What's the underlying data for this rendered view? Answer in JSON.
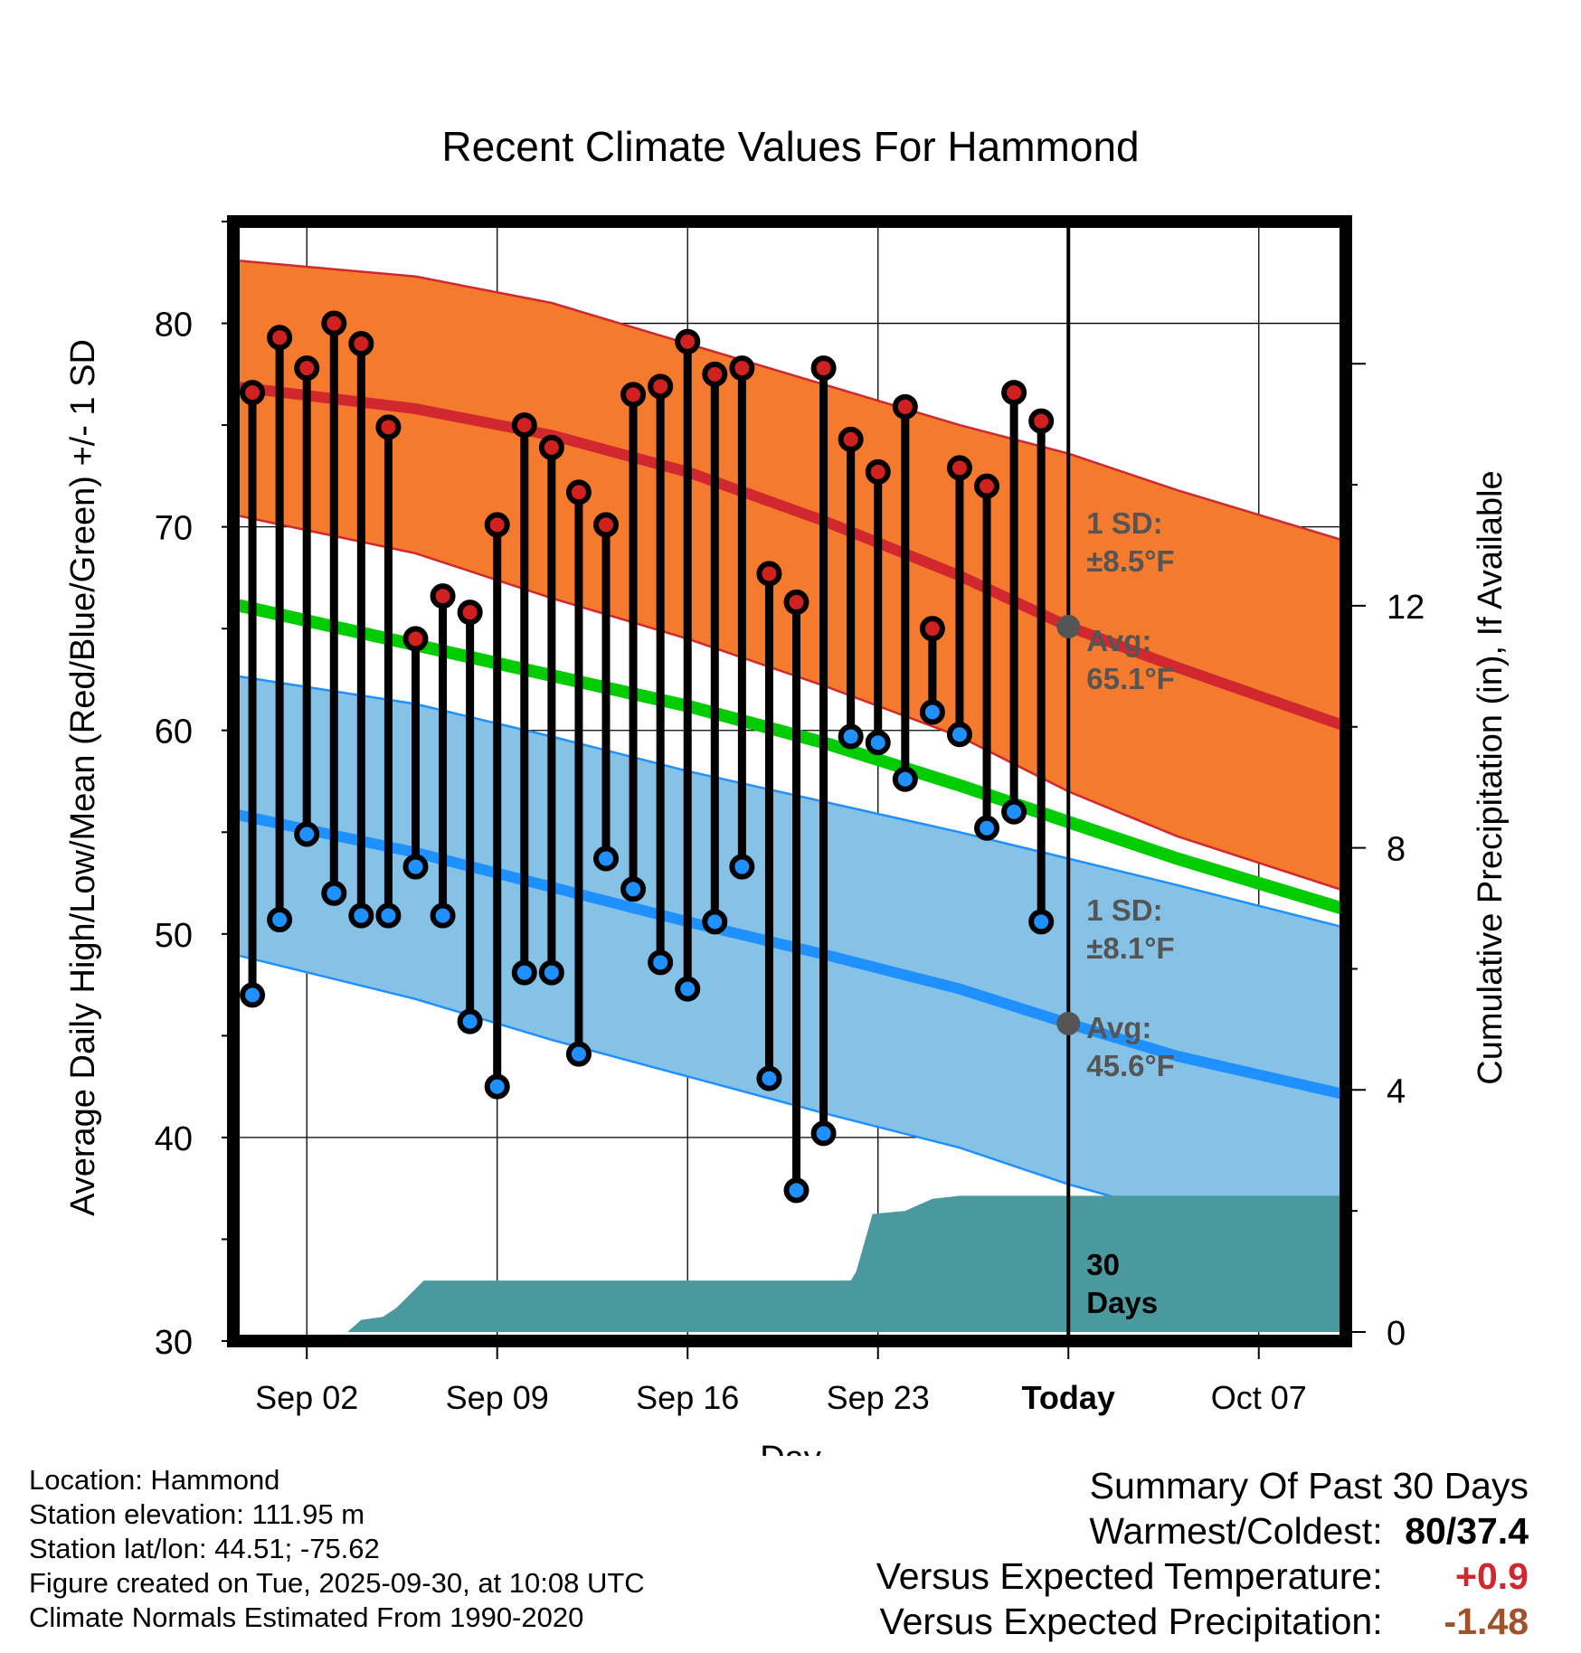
{
  "chart_data": {
    "type": "line",
    "title": "Recent Climate Values For Hammond",
    "xlabel": "Day",
    "ylabel": "Average Daily High/Low/Mean (Red/Blue/Green) +/- 1 SD",
    "y2label": "Cumulative Precipitation (in), If Available",
    "xlim": [
      -1.7,
      39.2
    ],
    "ylim": [
      30,
      85
    ],
    "y2lim": [
      0,
      18.5
    ],
    "y2_offset_in": -0.15,
    "yticks": [
      30,
      40,
      50,
      60,
      70,
      80
    ],
    "y2ticks": [
      0,
      4,
      8,
      12
    ],
    "xticks": [
      {
        "day": 1,
        "label": "Sep 02"
      },
      {
        "day": 8,
        "label": "Sep 09"
      },
      {
        "day": 15,
        "label": "Sep 16"
      },
      {
        "day": 22,
        "label": "Sep 23"
      },
      {
        "day": 29,
        "label": "Today"
      },
      {
        "day": 36,
        "label": "Oct 07"
      }
    ],
    "normal_high": {
      "x": [
        -1.7,
        5,
        10,
        15,
        20,
        25,
        29,
        33,
        39.2
      ],
      "mean": [
        76.9,
        75.8,
        74.5,
        72.7,
        70.3,
        67.6,
        65.1,
        63.1,
        60.2
      ]
    },
    "normal_high_band": {
      "x": [
        -1.7,
        5,
        10,
        15,
        20,
        25,
        29,
        33,
        39.2
      ],
      "upper": [
        83.1,
        82.3,
        81.0,
        79.0,
        77.0,
        75.0,
        73.6,
        71.8,
        69.3
      ],
      "lower": [
        70.6,
        68.7,
        66.5,
        64.5,
        62.2,
        59.7,
        57.0,
        54.8,
        52.1
      ]
    },
    "normal_mean": {
      "x": [
        -1.7,
        5,
        10,
        15,
        20,
        25,
        29,
        33,
        39.2
      ],
      "values": [
        66.2,
        64.2,
        62.7,
        61.2,
        59.4,
        57.3,
        55.5,
        53.7,
        51.2
      ]
    },
    "normal_low": {
      "x": [
        -1.7,
        5,
        10,
        15,
        20,
        25,
        29,
        33,
        39.2
      ],
      "mean": [
        55.9,
        54.0,
        52.3,
        50.6,
        49.0,
        47.3,
        45.6,
        44.0,
        42.1
      ]
    },
    "normal_low_band": {
      "x": [
        -1.7,
        5,
        10,
        15,
        20,
        25,
        29,
        33,
        39.2
      ],
      "upper": [
        62.7,
        61.3,
        59.7,
        58.0,
        56.5,
        55.0,
        53.7,
        52.4,
        50.3
      ],
      "lower": [
        49.0,
        46.8,
        44.8,
        43.0,
        41.2,
        39.5,
        37.7,
        36.2,
        34.5
      ]
    },
    "series": [
      {
        "name": "Daily High",
        "color": "#d02020",
        "values": [
          76.6,
          79.3,
          77.8,
          80.0,
          79.0,
          74.9,
          64.5,
          66.6,
          65.8,
          70.1,
          75.0,
          73.9,
          71.7,
          70.1,
          76.5,
          76.9,
          79.1,
          77.5,
          77.8,
          67.7,
          66.3,
          77.8,
          74.3,
          72.7,
          75.9,
          65.0,
          72.9,
          72.0,
          76.6,
          75.2
        ]
      },
      {
        "name": "Daily Low",
        "color": "#1e90ff",
        "values": [
          47.0,
          50.7,
          54.9,
          52.0,
          50.9,
          50.9,
          53.3,
          50.9,
          45.7,
          42.5,
          48.1,
          48.1,
          44.1,
          53.7,
          52.2,
          48.6,
          47.3,
          50.6,
          53.3,
          42.9,
          37.4,
          40.2,
          59.7,
          59.4,
          57.6,
          60.9,
          59.8,
          55.2,
          56.0,
          50.6
        ]
      }
    ],
    "days": [
      -1,
      0,
      1,
      2,
      3,
      4,
      5,
      6,
      7,
      8,
      9,
      10,
      11,
      12,
      13,
      14,
      15,
      16,
      17,
      18,
      19,
      20,
      21,
      22,
      23,
      24,
      25,
      26,
      27,
      28
    ],
    "precip": {
      "x": [
        -1.7,
        2.5,
        3.0,
        3.8,
        4.3,
        5.3,
        21.0,
        21.2,
        21.8,
        23.0,
        24.0,
        25.0,
        39.2
      ],
      "values": [
        0.0,
        0.0,
        0.2,
        0.25,
        0.4,
        0.85,
        0.85,
        1.0,
        1.95,
        2.0,
        2.2,
        2.25,
        2.25
      ]
    },
    "today_day": 29,
    "annotations": {
      "high_sd_label": "1 SD:",
      "high_sd_value": "±8.5°F",
      "high_avg_label": "Avg:",
      "high_avg_value": "65.1°F",
      "low_sd_label": "1 SD:",
      "low_sd_value": "±8.1°F",
      "low_avg_label": "Avg:",
      "low_avg_value": "45.6°F",
      "precip_label_1": "30",
      "precip_label_2": "Days"
    },
    "colors": {
      "high_band": "#f47a2e",
      "high_line": "#d0282e",
      "low_band": "#85c2e6",
      "low_line": "#1e90ff",
      "mean_line": "#00cc00",
      "precip": "#4a999e"
    }
  },
  "info": {
    "location": "Location: Hammond",
    "elevation": "Station elevation: 111.95 m",
    "latlon": "Station lat/lon: 44.51; -75.62",
    "created": "Figure created on Tue, 2025-09-30, at 10:08 UTC",
    "normals": "Climate Normals Estimated From 1990-2020"
  },
  "summary": {
    "title": "Summary Of Past 30 Days",
    "warmest_label": "Warmest/Coldest:",
    "warmest_value": "80/37.4",
    "temp_label": "Versus Expected Temperature:",
    "temp_value": "+0.9",
    "temp_color": "#d0282e",
    "precip_label": "Versus Expected Precipitation:",
    "precip_value": "-1.48",
    "precip_color": "#a0522d"
  }
}
